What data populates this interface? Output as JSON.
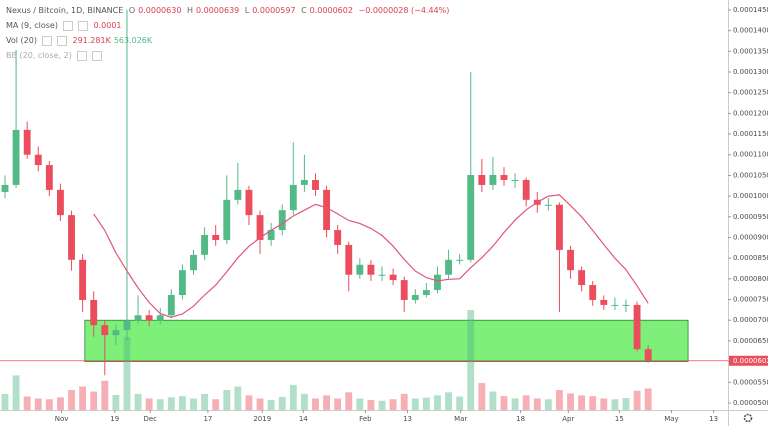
{
  "chart_data": {
    "type": "candlestick",
    "title": "Nexus / Bitcoin, 1D, BINANCE",
    "ohlc_legend": {
      "open_label": "O",
      "open": "0.0000630",
      "high_label": "H",
      "high": "0.0000639",
      "low_label": "L",
      "low": "0.0000597",
      "close_label": "C",
      "close": "0.0000602",
      "change": "−0.0000028 (−4.44%)"
    },
    "open": [
      0.000101,
      0.0001027,
      0.000116,
      0.00011,
      0.0001075,
      0.0001015,
      9.54e-05,
      8.46e-05,
      7.49e-05,
      6.88e-05,
      6.64e-05,
      6.76e-05,
      7e-05,
      7.12e-05,
      7e-05,
      7.12e-05,
      7.61e-05,
      8.21e-05,
      8.58e-05,
      9.06e-05,
      8.94e-05,
      9.91e-05,
      0.0001015,
      9.54e-05,
      8.94e-05,
      9.18e-05,
      9.66e-05,
      0.0001027,
      0.0001039,
      0.0001015,
      9.18e-05,
      8.82e-05,
      8.1e-05,
      8.34e-05,
      8.1e-05,
      8.1e-05,
      7.97e-05,
      7.49e-05,
      7.61e-05,
      7.73e-05,
      8.1e-05,
      8.46e-05,
      8.46e-05,
      0.0001051,
      0.0001027,
      0.0001051,
      0.0001039,
      0.0001039,
      9.91e-05,
      9.79e-05,
      9.79e-05,
      8.7e-05,
      8.21e-05,
      7.85e-05,
      7.49e-05,
      7.37e-05,
      7.37e-05,
      7.37e-05,
      6.3e-05
    ],
    "high": [
      0.000105,
      0.0001353,
      0.000118,
      0.000112,
      0.0001085,
      0.000103,
      9.65e-05,
      8.6e-05,
      7.7e-05,
      7e-05,
      6.9e-05,
      0.000145,
      7.6e-05,
      7.25e-05,
      7.3e-05,
      7.75e-05,
      8.35e-05,
      8.7e-05,
      9.25e-05,
      9.3e-05,
      0.000105,
      0.000108,
      0.0001025,
      9.65e-05,
      9.35e-05,
      9.8e-05,
      0.000113,
      0.00011,
      0.0001055,
      0.0001025,
      9.3e-05,
      8.9e-05,
      8.5e-05,
      8.45e-05,
      8.3e-05,
      8.25e-05,
      8.05e-05,
      7.75e-05,
      7.9e-05,
      8.3e-05,
      8.7e-05,
      8.6e-05,
      0.00013,
      0.000109,
      0.0001095,
      0.000107,
      0.0001055,
      0.0001045,
      0.000101,
      9.95e-05,
      9.85e-05,
      8.8e-05,
      8.3e-05,
      7.95e-05,
      7.6e-05,
      7.55e-05,
      7.5e-05,
      7.45e-05,
      6.39e-05
    ],
    "low": [
      9.95e-05,
      0.000102,
      0.000109,
      0.000106,
      0.0001,
      9.4e-05,
      8.2e-05,
      7.2e-05,
      6.6e-05,
      5.67e-05,
      6.4e-05,
      6.5e-05,
      6.9e-05,
      6.85e-05,
      6.9e-05,
      7.05e-05,
      7.5e-05,
      8.1e-05,
      8.45e-05,
      8.8e-05,
      8.85e-05,
      9.8e-05,
      9.3e-05,
      8.6e-05,
      8.8e-05,
      9.05e-05,
      9.55e-05,
      0.000101,
      0.0001,
      9e-05,
      8.6e-05,
      7.7e-05,
      8e-05,
      7.95e-05,
      7.95e-05,
      7.85e-05,
      7.2e-05,
      7.4e-05,
      7.55e-05,
      7.65e-05,
      8e-05,
      8.35e-05,
      8.4e-05,
      0.000101,
      0.0001015,
      0.0001025,
      0.000102,
      9.75e-05,
      9.6e-05,
      9.65e-05,
      7.2e-05,
      8e-05,
      7.7e-05,
      7.35e-05,
      7.25e-05,
      7.25e-05,
      7.2e-05,
      6.25e-05,
      5.97e-05
    ],
    "close": [
      0.0001027,
      0.000116,
      0.00011,
      0.0001075,
      0.0001015,
      9.54e-05,
      8.46e-05,
      7.49e-05,
      6.88e-05,
      6.64e-05,
      6.76e-05,
      7e-05,
      7.12e-05,
      7e-05,
      7.12e-05,
      7.61e-05,
      8.21e-05,
      8.58e-05,
      9.06e-05,
      8.94e-05,
      9.91e-05,
      0.0001015,
      9.54e-05,
      8.94e-05,
      9.18e-05,
      9.66e-05,
      0.0001027,
      0.0001039,
      0.0001015,
      9.18e-05,
      8.82e-05,
      8.1e-05,
      8.34e-05,
      8.1e-05,
      8.1e-05,
      7.97e-05,
      7.49e-05,
      7.61e-05,
      7.73e-05,
      8.1e-05,
      8.46e-05,
      8.46e-05,
      0.0001051,
      0.0001027,
      0.0001051,
      0.0001039,
      0.0001039,
      9.91e-05,
      9.79e-05,
      9.79e-05,
      8.7e-05,
      8.21e-05,
      7.85e-05,
      7.49e-05,
      7.37e-05,
      7.37e-05,
      7.37e-05,
      6.3e-05,
      6.02e-05
    ],
    "volume": [
      420,
      900,
      350,
      300,
      280,
      330,
      520,
      610,
      480,
      760,
      390,
      1900,
      420,
      300,
      280,
      330,
      360,
      300,
      420,
      280,
      520,
      610,
      380,
      300,
      260,
      340,
      650,
      420,
      300,
      380,
      300,
      460,
      300,
      260,
      240,
      280,
      420,
      300,
      320,
      380,
      460,
      350,
      2600,
      700,
      480,
      360,
      300,
      380,
      300,
      280,
      520,
      430,
      380,
      360,
      300,
      280,
      310,
      500,
      560
    ],
    "ma": {
      "name": "MA (9, close)",
      "value_label": "0.0001",
      "color": "#e0567a",
      "values": [
        null,
        null,
        null,
        null,
        null,
        null,
        null,
        null,
        9.57e-05,
        9.17e-05,
        8.63e-05,
        8.19e-05,
        7.78e-05,
        7.43e-05,
        7.16e-05,
        7.07e-05,
        7.15e-05,
        7.34e-05,
        7.61e-05,
        7.85e-05,
        8.17e-05,
        8.51e-05,
        8.79e-05,
        8.99e-05,
        9.17e-05,
        9.33e-05,
        9.52e-05,
        9.66e-05,
        9.8e-05,
        9.72e-05,
        9.57e-05,
        9.41e-05,
        9.34e-05,
        9.22e-05,
        9.05e-05,
        8.79e-05,
        8.47e-05,
        8.19e-05,
        8.03e-05,
        7.95e-05,
        7.99e-05,
        8e-05,
        8.27e-05,
        8.51e-05,
        8.79e-05,
        9.12e-05,
        9.42e-05,
        9.67e-05,
        9.85e-05,
        0.0001,
        0.0001003,
        9.77e-05,
        9.5e-05,
        9.17e-05,
        8.83e-05,
        8.5e-05,
        8.22e-05,
        7.83e-05,
        7.41e-05
      ]
    },
    "vol_legend": {
      "name": "Vol (20)",
      "value": "291.281K",
      "average": "563.026K"
    },
    "bb_legend": {
      "name": "BB (20, close, 2)"
    },
    "up_color": "#53b987",
    "down_color": "#eb4d5c",
    "zone": {
      "high": 7e-05,
      "low": 6e-05,
      "from": 7.2,
      "to": 61.6,
      "color": "#7ef07a"
    },
    "ylim": [
      4.83e-05,
      0.0001474
    ],
    "yticks": [
      {
        "value": 0.000145,
        "label": "0.0001450"
      },
      {
        "value": 0.00014,
        "label": "0.0001400"
      },
      {
        "value": 0.000135,
        "label": "0.0001350"
      },
      {
        "value": 0.00013,
        "label": "0.0001300"
      },
      {
        "value": 0.000125,
        "label": "0.0001250"
      },
      {
        "value": 0.00012,
        "label": "0.0001200"
      },
      {
        "value": 0.000115,
        "label": "0.0001150"
      },
      {
        "value": 0.00011,
        "label": "0.0001100"
      },
      {
        "value": 0.000105,
        "label": "0.0001050"
      },
      {
        "value": 0.0001,
        "label": "0.0001000"
      },
      {
        "value": 9.5e-05,
        "label": "0.0000950"
      },
      {
        "value": 9e-05,
        "label": "0.0000900"
      },
      {
        "value": 8.5e-05,
        "label": "0.0000850"
      },
      {
        "value": 8e-05,
        "label": "0.0000800"
      },
      {
        "value": 7.5e-05,
        "label": "0.0000750"
      },
      {
        "value": 7e-05,
        "label": "0.0000700"
      },
      {
        "value": 6.5e-05,
        "label": "0.0000650"
      },
      {
        "value": 6e-05,
        "label": "0.0000600"
      },
      {
        "value": 5.5e-05,
        "label": "0.0000550"
      },
      {
        "value": 5e-05,
        "label": "0.0000500"
      }
    ],
    "xlim": [
      -0.45,
      65.2
    ],
    "xticks": [
      {
        "value": 5.1,
        "label": "Nov"
      },
      {
        "value": 9.9,
        "label": "19"
      },
      {
        "value": 13.1,
        "label": "Dec"
      },
      {
        "value": 18.3,
        "label": "17"
      },
      {
        "value": 23.2,
        "label": "2019"
      },
      {
        "value": 26.9,
        "label": "14"
      },
      {
        "value": 32.5,
        "label": "Feb"
      },
      {
        "value": 36.3,
        "label": "13"
      },
      {
        "value": 41.1,
        "label": "Mar"
      },
      {
        "value": 46.5,
        "label": "18"
      },
      {
        "value": 50.8,
        "label": "Apr"
      },
      {
        "value": 55.4,
        "label": "15"
      },
      {
        "value": 60.1,
        "label": "May"
      },
      {
        "value": 63.9,
        "label": "13"
      }
    ]
  }
}
